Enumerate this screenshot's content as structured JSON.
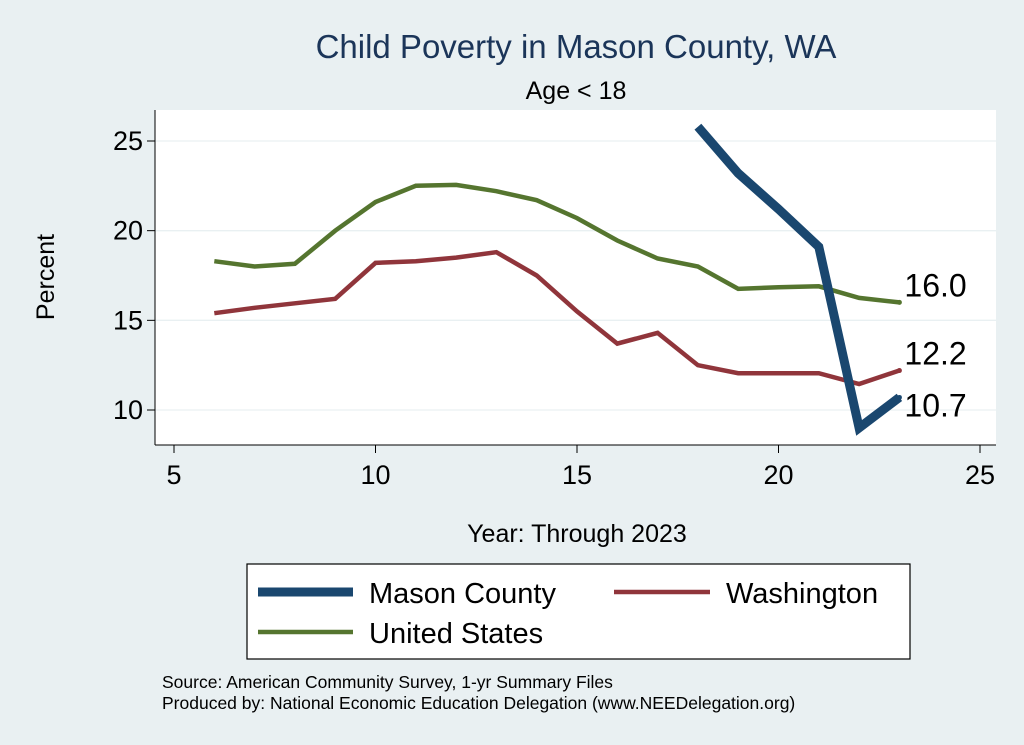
{
  "chart_data": {
    "type": "line",
    "title": "Child Poverty in Mason County, WA",
    "subtitle": "Age < 18",
    "xlabel": "Year: Through 2023",
    "ylabel": "Percent",
    "xlim": [
      5,
      25
    ],
    "ylim": [
      8,
      27
    ],
    "xticks": [
      "5",
      "10",
      "15",
      "20",
      "25"
    ],
    "yticks": [
      "10",
      "15",
      "20",
      "25"
    ],
    "grid": true,
    "series": [
      {
        "name": "Mason County",
        "color": "#1a476f",
        "x": [
          18,
          19,
          20,
          21,
          22,
          23
        ],
        "y": [
          25.8,
          23.2,
          21.2,
          19.1,
          9.0,
          10.7
        ],
        "end_label": "10.7"
      },
      {
        "name": "Washington",
        "color": "#90353b",
        "x": [
          6,
          7,
          8,
          9,
          10,
          11,
          12,
          13,
          14,
          15,
          16,
          17,
          18,
          19,
          20,
          21,
          22,
          23
        ],
        "y": [
          15.4,
          15.7,
          15.95,
          16.2,
          18.2,
          18.3,
          18.5,
          18.8,
          17.5,
          15.5,
          13.7,
          14.3,
          12.5,
          12.05,
          12.05,
          12.05,
          11.45,
          12.2
        ],
        "end_label": "12.2"
      },
      {
        "name": "United States",
        "color": "#55752f",
        "x": [
          6,
          7,
          8,
          9,
          10,
          11,
          12,
          13,
          14,
          15,
          16,
          17,
          18,
          19,
          20,
          21,
          22,
          23
        ],
        "y": [
          18.3,
          18.0,
          18.15,
          20.0,
          21.6,
          22.5,
          22.55,
          22.2,
          21.7,
          20.7,
          19.45,
          18.45,
          18.0,
          16.75,
          16.85,
          16.9,
          16.25,
          16.0
        ],
        "end_label": "16.0"
      }
    ],
    "legend_position": "bottom",
    "source_lines": [
      "Source: American Community Survey, 1-yr Summary Files",
      "Produced by: National Economic Education Delegation (www.NEEDelegation.org)"
    ]
  }
}
